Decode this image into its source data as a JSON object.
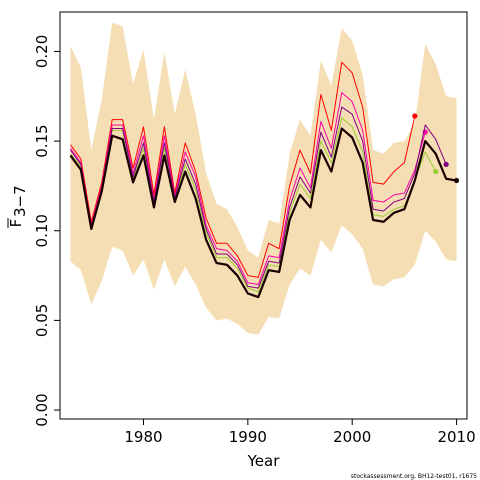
{
  "chart_data": {
    "type": "line",
    "xlabel": "Year",
    "ylabel_main": "F",
    "ylabel_sub": "3−7",
    "xlim": [
      1972,
      2011
    ],
    "ylim": [
      -0.005,
      0.222
    ],
    "x_ticks": [
      1980,
      1990,
      2000,
      2010
    ],
    "x_tick_labels": [
      "1980",
      "1990",
      "2000",
      "2010"
    ],
    "y_ticks": [
      0.0,
      0.05,
      0.1,
      0.15,
      0.2
    ],
    "y_tick_labels": [
      "0.00",
      "0.05",
      "0.10",
      "0.15",
      "0.20"
    ],
    "footnote": "stockassessment.org, BH12-test01, r1675",
    "band": {
      "color": "#f5deb3",
      "x": [
        1973,
        1974,
        1975,
        1976,
        1977,
        1978,
        1979,
        1980,
        1981,
        1982,
        1983,
        1984,
        1985,
        1986,
        1987,
        1988,
        1989,
        1990,
        1991,
        1992,
        1993,
        1994,
        1995,
        1996,
        1997,
        1998,
        1999,
        2000,
        2001,
        2002,
        2003,
        2004,
        2005,
        2006,
        2007,
        2008,
        2009,
        2010
      ],
      "upper": [
        0.203,
        0.191,
        0.145,
        0.173,
        0.216,
        0.214,
        0.182,
        0.201,
        0.162,
        0.2,
        0.165,
        0.19,
        0.165,
        0.132,
        0.115,
        0.112,
        0.102,
        0.089,
        0.085,
        0.106,
        0.104,
        0.143,
        0.162,
        0.153,
        0.195,
        0.181,
        0.213,
        0.206,
        0.187,
        0.145,
        0.143,
        0.149,
        0.15,
        0.16,
        0.204,
        0.193,
        0.175,
        0.174
      ],
      "lower": [
        0.083,
        0.078,
        0.059,
        0.072,
        0.091,
        0.089,
        0.075,
        0.084,
        0.067,
        0.084,
        0.069,
        0.08,
        0.07,
        0.057,
        0.05,
        0.051,
        0.048,
        0.043,
        0.042,
        0.052,
        0.051,
        0.07,
        0.079,
        0.075,
        0.095,
        0.088,
        0.103,
        0.098,
        0.09,
        0.07,
        0.069,
        0.073,
        0.074,
        0.081,
        0.1,
        0.094,
        0.084,
        0.083
      ]
    },
    "series": [
      {
        "color": "#ff0000",
        "width": 1,
        "end_dot": true,
        "x": [
          1973,
          1974,
          1975,
          1976,
          1977,
          1978,
          1979,
          1980,
          1981,
          1982,
          1983,
          1984,
          1985,
          1986,
          1987,
          1988,
          1989,
          1990,
          1991,
          1992,
          1993,
          1994,
          1995,
          1996,
          1997,
          1998,
          1999,
          2000,
          2001,
          2002,
          2003,
          2004,
          2005,
          2006
        ],
        "values": [
          0.148,
          0.14,
          0.105,
          0.127,
          0.162,
          0.162,
          0.135,
          0.158,
          0.12,
          0.158,
          0.121,
          0.149,
          0.133,
          0.107,
          0.093,
          0.093,
          0.086,
          0.075,
          0.074,
          0.093,
          0.09,
          0.125,
          0.145,
          0.132,
          0.176,
          0.156,
          0.194,
          0.188,
          0.169,
          0.127,
          0.126,
          0.133,
          0.138,
          0.164
        ]
      },
      {
        "color": "#ff00aa",
        "width": 1,
        "end_dot": true,
        "x": [
          1973,
          1974,
          1975,
          1976,
          1977,
          1978,
          1979,
          1980,
          1981,
          1982,
          1983,
          1984,
          1985,
          1986,
          1987,
          1988,
          1989,
          1990,
          1991,
          1992,
          1993,
          1994,
          1995,
          1996,
          1997,
          1998,
          1999,
          2000,
          2001,
          2002,
          2003,
          2004,
          2005,
          2006,
          2007
        ],
        "values": [
          0.146,
          0.138,
          0.103,
          0.125,
          0.159,
          0.159,
          0.132,
          0.153,
          0.117,
          0.153,
          0.119,
          0.144,
          0.13,
          0.103,
          0.09,
          0.089,
          0.083,
          0.071,
          0.07,
          0.086,
          0.085,
          0.117,
          0.135,
          0.124,
          0.161,
          0.146,
          0.177,
          0.172,
          0.156,
          0.117,
          0.116,
          0.12,
          0.121,
          0.134,
          0.155
        ]
      },
      {
        "color": "#9acd32",
        "width": 1,
        "end_dot": true,
        "x": [
          1973,
          1974,
          1975,
          1976,
          1977,
          1978,
          1979,
          1980,
          1981,
          1982,
          1983,
          1984,
          1985,
          1986,
          1987,
          1988,
          1989,
          1990,
          1991,
          1992,
          1993,
          1994,
          1995,
          1996,
          1997,
          1998,
          1999,
          2000,
          2001,
          2002,
          2003,
          2004,
          2005,
          2006,
          2007,
          2008
        ],
        "values": [
          0.143,
          0.136,
          0.102,
          0.123,
          0.156,
          0.156,
          0.129,
          0.146,
          0.115,
          0.146,
          0.117,
          0.137,
          0.123,
          0.099,
          0.085,
          0.085,
          0.079,
          0.068,
          0.066,
          0.081,
          0.08,
          0.11,
          0.126,
          0.118,
          0.15,
          0.138,
          0.163,
          0.158,
          0.144,
          0.109,
          0.108,
          0.112,
          0.114,
          0.128,
          0.144,
          0.133
        ]
      },
      {
        "color": "#800080",
        "width": 1,
        "end_dot": true,
        "x": [
          1973,
          1974,
          1975,
          1976,
          1977,
          1978,
          1979,
          1980,
          1981,
          1982,
          1983,
          1984,
          1985,
          1986,
          1987,
          1988,
          1989,
          1990,
          1991,
          1992,
          1993,
          1994,
          1995,
          1996,
          1997,
          1998,
          1999,
          2000,
          2001,
          2002,
          2003,
          2004,
          2005,
          2006,
          2007,
          2008,
          2009
        ],
        "values": [
          0.145,
          0.137,
          0.102,
          0.124,
          0.157,
          0.157,
          0.13,
          0.149,
          0.116,
          0.149,
          0.118,
          0.14,
          0.126,
          0.101,
          0.087,
          0.087,
          0.081,
          0.069,
          0.068,
          0.083,
          0.082,
          0.113,
          0.13,
          0.121,
          0.155,
          0.141,
          0.169,
          0.165,
          0.15,
          0.112,
          0.111,
          0.116,
          0.118,
          0.132,
          0.159,
          0.151,
          0.137
        ]
      },
      {
        "color": "#1a0000",
        "width": 2.2,
        "end_dot": true,
        "x": [
          1973,
          1974,
          1975,
          1976,
          1977,
          1978,
          1979,
          1980,
          1981,
          1982,
          1983,
          1984,
          1985,
          1986,
          1987,
          1988,
          1989,
          1990,
          1991,
          1992,
          1993,
          1994,
          1995,
          1996,
          1997,
          1998,
          1999,
          2000,
          2001,
          2002,
          2003,
          2004,
          2005,
          2006,
          2007,
          2008,
          2009,
          2010
        ],
        "values": [
          0.142,
          0.134,
          0.101,
          0.122,
          0.153,
          0.151,
          0.127,
          0.142,
          0.113,
          0.142,
          0.116,
          0.133,
          0.118,
          0.095,
          0.082,
          0.081,
          0.075,
          0.065,
          0.063,
          0.078,
          0.077,
          0.106,
          0.12,
          0.113,
          0.145,
          0.133,
          0.157,
          0.152,
          0.138,
          0.106,
          0.105,
          0.11,
          0.112,
          0.128,
          0.15,
          0.143,
          0.129,
          0.128
        ]
      }
    ]
  }
}
